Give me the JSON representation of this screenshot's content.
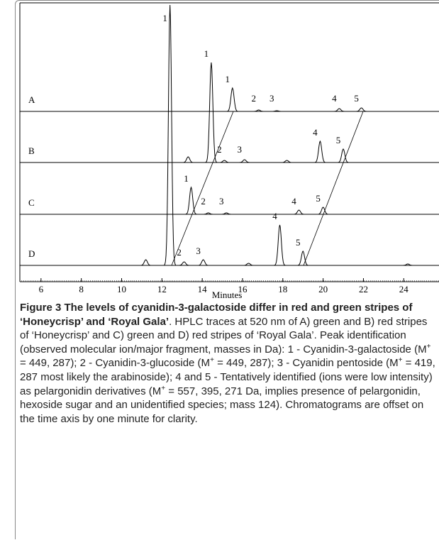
{
  "chart_data": {
    "type": "line",
    "xlabel": "Minutes",
    "xlim": [
      4.95,
      25.75
    ],
    "xticks": [
      6,
      8,
      10,
      12,
      14,
      16,
      18,
      20,
      22,
      24
    ],
    "series": [
      {
        "name": "A",
        "color": "#000000",
        "x": [
          15.5,
          16.8,
          17.7,
          20.8,
          21.9
        ],
        "values": [
          33,
          2,
          1,
          4,
          5
        ],
        "peak_labels": [
          "1",
          "2",
          "3",
          "4",
          "5"
        ]
      },
      {
        "name": "B",
        "color": "#000000",
        "x": [
          13.3,
          14.45,
          15.1,
          16.1,
          18.2,
          19.85,
          21.0
        ],
        "values": [
          8,
          141,
          3,
          4,
          3,
          30,
          19
        ],
        "peak_labels": [
          null,
          "1",
          "2",
          "3",
          null,
          "4",
          "5"
        ]
      },
      {
        "name": "C",
        "color": "#000000",
        "x": [
          13.45,
          14.3,
          15.2,
          18.8,
          20.0
        ],
        "values": [
          38,
          2,
          2,
          6,
          10
        ],
        "peak_labels": [
          "1",
          "2",
          "3",
          "4",
          "5"
        ]
      },
      {
        "name": "D",
        "color": "#000000",
        "x": [
          11.2,
          12.4,
          13.1,
          14.05,
          16.3,
          17.85,
          19.0,
          24.2
        ],
        "values": [
          8,
          367,
          5,
          8,
          3,
          57,
          20,
          2
        ],
        "peak_labels": [
          null,
          "1",
          "2",
          "3",
          null,
          "4",
          "5",
          null
        ]
      }
    ]
  },
  "caption": {
    "title": "Figure 3 The levels of cyanidin-3-galactoside differ in red and green stripes of ‘Honeycrisp’ and ‘Royal Gala’",
    "body": [
      ". HPLC traces at 520 nm of A) green and B) red stripes of ‘Honeycrisp’ and C) green and D) red stripes of ‘Royal Gala’. Peak identification (observed molecular ion/major fragment, masses in Da): 1 - Cyanidin-3-galactoside (M",
      "+",
      " = 449, 287); 2 - Cyanidin-3-glucoside (M",
      "+",
      " = 449, 287); 3 - Cyanidin pentoside (M",
      "+",
      " = 419, 287 most likely the arabinoside); 4 and 5 - Tentatively identified (ions were low intensity) as pelargonidin derivatives (M",
      "+",
      " = 557, 395, 271 Da, implies presence of pelargonidin, hexoside sugar and an unidentified species; mass 124). Chromatograms are offset on the time axis by one minute for clarity."
    ]
  }
}
